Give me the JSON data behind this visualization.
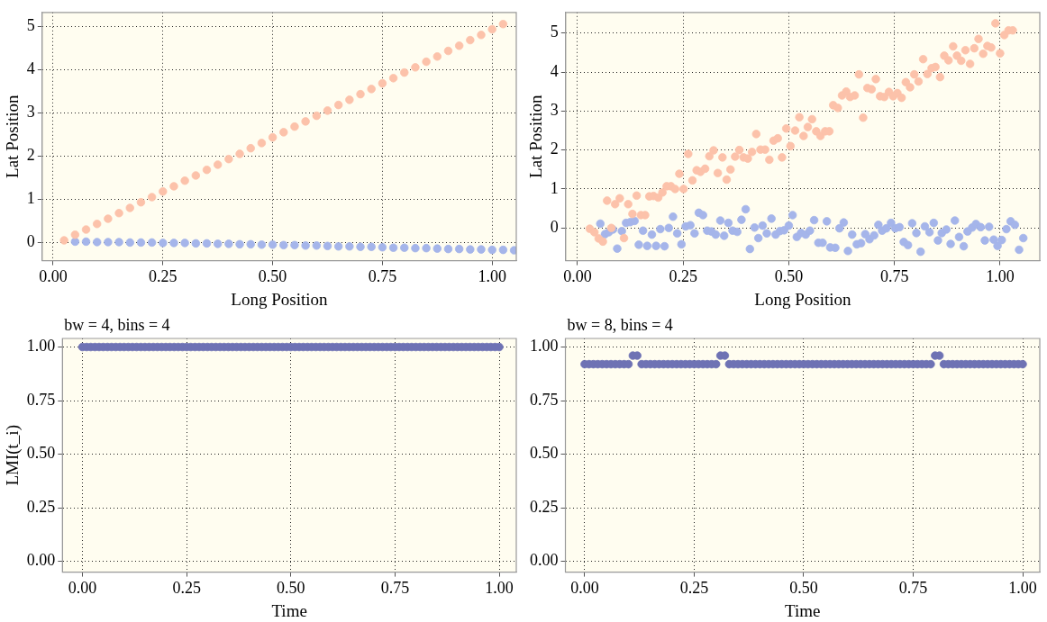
{
  "chart_data": [
    {
      "type": "scatter",
      "xlabel": "Long Position",
      "ylabel": "Lat Position",
      "xlim": [
        -0.025,
        1.055
      ],
      "ylim": [
        -0.42,
        5.32
      ],
      "xticks": [
        {
          "value": 0,
          "label": "0.00"
        },
        {
          "value": 0.25,
          "label": "0.25"
        },
        {
          "value": 0.5,
          "label": "0.50"
        },
        {
          "value": 0.75,
          "label": "0.75"
        },
        {
          "value": 1,
          "label": "1.00"
        }
      ],
      "yticks": [
        0,
        1,
        2,
        3,
        4,
        5
      ],
      "grid": true,
      "marker": "circle",
      "series": [
        {
          "color": "#fcc2aa",
          "x": [
            0.025,
            0.05,
            0.075,
            0.1,
            0.125,
            0.15,
            0.175,
            0.2,
            0.225,
            0.25,
            0.275,
            0.3,
            0.325,
            0.35,
            0.375,
            0.4,
            0.425,
            0.45,
            0.475,
            0.5,
            0.525,
            0.55,
            0.575,
            0.6,
            0.625,
            0.65,
            0.675,
            0.7,
            0.725,
            0.75,
            0.775,
            0.8,
            0.825,
            0.85,
            0.875,
            0.9,
            0.925,
            0.95,
            0.975,
            1.0,
            1.025
          ],
          "values": [
            0.05,
            0.18,
            0.3,
            0.43,
            0.55,
            0.68,
            0.8,
            0.93,
            1.05,
            1.18,
            1.3,
            1.43,
            1.55,
            1.68,
            1.8,
            1.93,
            2.05,
            2.18,
            2.3,
            2.43,
            2.55,
            2.68,
            2.8,
            2.93,
            3.05,
            3.18,
            3.3,
            3.43,
            3.55,
            3.68,
            3.8,
            3.93,
            4.05,
            4.18,
            4.3,
            4.43,
            4.55,
            4.68,
            4.8,
            4.93,
            5.05
          ]
        },
        {
          "color": "#a5b5ea",
          "x": [
            0.05,
            0.075,
            0.1,
            0.125,
            0.15,
            0.175,
            0.2,
            0.225,
            0.25,
            0.275,
            0.3,
            0.325,
            0.35,
            0.375,
            0.4,
            0.425,
            0.45,
            0.475,
            0.5,
            0.525,
            0.55,
            0.575,
            0.6,
            0.625,
            0.65,
            0.675,
            0.7,
            0.725,
            0.75,
            0.775,
            0.8,
            0.825,
            0.85,
            0.875,
            0.9,
            0.925,
            0.95,
            0.975,
            1.0,
            1.025,
            1.05
          ],
          "values": [
            0.02,
            0.02,
            0.01,
            0.01,
            0.01,
            0.0,
            0.0,
            0.0,
            -0.01,
            -0.01,
            -0.01,
            -0.02,
            -0.02,
            -0.03,
            -0.03,
            -0.04,
            -0.04,
            -0.05,
            -0.05,
            -0.06,
            -0.06,
            -0.07,
            -0.07,
            -0.08,
            -0.09,
            -0.09,
            -0.1,
            -0.1,
            -0.11,
            -0.12,
            -0.12,
            -0.13,
            -0.13,
            -0.14,
            -0.15,
            -0.15,
            -0.16,
            -0.16,
            -0.17,
            -0.17,
            -0.18
          ]
        }
      ]
    },
    {
      "type": "scatter",
      "xlabel": "Long Position",
      "ylabel": "Lat Position",
      "xlim": [
        -0.028,
        1.094
      ],
      "ylim": [
        -0.84,
        5.53
      ],
      "xticks": [
        {
          "value": 0,
          "label": "0.00"
        },
        {
          "value": 0.25,
          "label": "0.25"
        },
        {
          "value": 0.5,
          "label": "0.50"
        },
        {
          "value": 0.75,
          "label": "0.75"
        },
        {
          "value": 1,
          "label": "1.00"
        }
      ],
      "yticks": [
        0,
        1,
        2,
        3,
        4,
        5
      ],
      "grid": true,
      "marker": "circle",
      "series": [
        {
          "color": "#fcc2aa",
          "x": [
            0.029,
            0.04,
            0.05,
            0.06,
            0.07,
            0.08,
            0.089,
            0.1,
            0.11,
            0.12,
            0.13,
            0.14,
            0.15,
            0.16,
            0.17,
            0.18,
            0.191,
            0.201,
            0.211,
            0.221,
            0.231,
            0.241,
            0.251,
            0.262,
            0.272,
            0.282,
            0.291,
            0.302,
            0.312,
            0.322,
            0.332,
            0.343,
            0.353,
            0.362,
            0.373,
            0.383,
            0.393,
            0.403,
            0.413,
            0.423,
            0.433,
            0.444,
            0.454,
            0.464,
            0.474,
            0.484,
            0.494,
            0.504,
            0.515,
            0.525,
            0.535,
            0.545,
            0.555,
            0.565,
            0.575,
            0.586,
            0.596,
            0.605,
            0.616,
            0.626,
            0.636,
            0.645,
            0.656,
            0.666,
            0.676,
            0.686,
            0.696,
            0.706,
            0.716,
            0.726,
            0.737,
            0.747,
            0.757,
            0.767,
            0.777,
            0.787,
            0.797,
            0.807,
            0.818,
            0.828,
            0.838,
            0.847,
            0.858,
            0.868,
            0.878,
            0.889,
            0.898,
            0.908,
            0.918,
            0.929,
            0.939,
            0.949,
            0.96,
            0.97,
            0.979,
            0.989,
            1.0,
            1.01,
            1.02,
            1.03
          ],
          "values": [
            -0.02,
            -0.11,
            -0.27,
            -0.35,
            0.7,
            0.0,
            0.61,
            0.76,
            -0.26,
            0.61,
            0.36,
            0.83,
            0.33,
            0.33,
            0.81,
            0.82,
            0.78,
            0.91,
            1.07,
            1.07,
            1.0,
            1.39,
            1.0,
            1.9,
            1.22,
            1.48,
            1.44,
            1.52,
            1.84,
            1.99,
            1.41,
            1.81,
            1.24,
            1.5,
            1.83,
            2.0,
            1.81,
            1.78,
            1.95,
            2.41,
            2.01,
            2.01,
            1.75,
            2.24,
            2.3,
            1.81,
            2.55,
            2.1,
            2.5,
            2.84,
            2.36,
            2.59,
            2.79,
            2.48,
            2.36,
            2.48,
            2.48,
            3.15,
            3.08,
            3.4,
            3.5,
            3.36,
            3.4,
            3.94,
            2.83,
            3.59,
            3.56,
            3.82,
            3.38,
            3.36,
            3.49,
            3.38,
            3.46,
            3.34,
            3.74,
            3.61,
            3.94,
            3.76,
            4.33,
            3.95,
            4.1,
            4.13,
            3.87,
            4.42,
            4.3,
            4.66,
            4.42,
            4.29,
            4.56,
            4.21,
            4.61,
            4.85,
            4.47,
            4.67,
            4.63,
            5.25,
            4.48,
            4.95,
            5.07,
            5.07
          ]
        },
        {
          "color": "#a5b5ea",
          "x": [
            0.054,
            0.065,
            0.074,
            0.084,
            0.094,
            0.105,
            0.115,
            0.125,
            0.135,
            0.145,
            0.155,
            0.165,
            0.176,
            0.186,
            0.196,
            0.206,
            0.216,
            0.226,
            0.236,
            0.246,
            0.256,
            0.267,
            0.277,
            0.287,
            0.297,
            0.307,
            0.317,
            0.327,
            0.338,
            0.347,
            0.357,
            0.367,
            0.378,
            0.388,
            0.398,
            0.408,
            0.419,
            0.428,
            0.438,
            0.448,
            0.459,
            0.469,
            0.479,
            0.489,
            0.5,
            0.509,
            0.519,
            0.529,
            0.54,
            0.55,
            0.56,
            0.57,
            0.58,
            0.59,
            0.598,
            0.61,
            0.62,
            0.63,
            0.64,
            0.65,
            0.661,
            0.671,
            0.681,
            0.691,
            0.702,
            0.712,
            0.721,
            0.731,
            0.742,
            0.752,
            0.762,
            0.772,
            0.782,
            0.792,
            0.802,
            0.812,
            0.822,
            0.833,
            0.843,
            0.853,
            0.862,
            0.873,
            0.883,
            0.893,
            0.903,
            0.914,
            0.923,
            0.934,
            0.943,
            0.954,
            0.964,
            0.974,
            0.985,
            0.994,
            1.004,
            1.015,
            1.025,
            1.035,
            1.045,
            1.055
          ],
          "values": [
            0.11,
            -0.16,
            -0.11,
            -0.04,
            -0.53,
            -0.08,
            0.13,
            0.15,
            0.18,
            -0.43,
            -0.07,
            -0.46,
            -0.17,
            -0.46,
            -0.03,
            -0.47,
            0.0,
            0.29,
            -0.14,
            -0.42,
            0.04,
            0.07,
            -0.14,
            0.39,
            0.33,
            -0.07,
            -0.09,
            -0.17,
            0.19,
            -0.2,
            0.13,
            -0.07,
            -0.1,
            0.21,
            0.48,
            -0.54,
            0.01,
            -0.26,
            0.06,
            -0.14,
            0.24,
            -0.17,
            -0.08,
            -0.06,
            0.06,
            0.33,
            -0.23,
            -0.13,
            -0.17,
            -0.07,
            0.2,
            -0.38,
            -0.38,
            0.17,
            -0.5,
            -0.51,
            -0.01,
            0.14,
            -0.59,
            -0.17,
            -0.42,
            -0.39,
            -0.16,
            -0.29,
            -0.19,
            0.08,
            -0.07,
            -0.01,
            0.13,
            -0.01,
            0.02,
            -0.36,
            -0.44,
            0.12,
            -0.13,
            -0.61,
            0.04,
            -0.11,
            0.13,
            -0.32,
            -0.13,
            -0.04,
            -0.41,
            0.19,
            -0.23,
            -0.47,
            -0.09,
            0.01,
            0.1,
            0.02,
            -0.32,
            0.03,
            -0.3,
            -0.46,
            -0.31,
            -0.03,
            0.17,
            0.08,
            -0.56,
            -0.26
          ]
        }
      ]
    },
    {
      "type": "scatter",
      "title": "bw = 4, bins = 4",
      "xlabel": "Time",
      "ylabel": "LMI(t_i)",
      "xlim": [
        -0.048,
        1.041
      ],
      "ylim": [
        -0.05,
        1.04
      ],
      "xticks": [
        {
          "value": 0,
          "label": "0.00"
        },
        {
          "value": 0.25,
          "label": "0.25"
        },
        {
          "value": 0.5,
          "label": "0.50"
        },
        {
          "value": 0.75,
          "label": "0.75"
        },
        {
          "value": 1,
          "label": "1.00"
        }
      ],
      "yticks": [
        {
          "value": 0,
          "label": "0.00"
        },
        {
          "value": 0.25,
          "label": "0.25"
        },
        {
          "value": 0.5,
          "label": "0.50"
        },
        {
          "value": 0.75,
          "label": "0.75"
        },
        {
          "value": 1,
          "label": "1.00"
        }
      ],
      "grid": true,
      "marker": "circle",
      "series": [
        {
          "color": "#6e72b4",
          "x": [
            0,
            0.01,
            0.02,
            0.03,
            0.04,
            0.05,
            0.06,
            0.07,
            0.08,
            0.09,
            0.1,
            0.11,
            0.12,
            0.13,
            0.14,
            0.15,
            0.16,
            0.17,
            0.18,
            0.19,
            0.2,
            0.21,
            0.22,
            0.23,
            0.24,
            0.25,
            0.26,
            0.27,
            0.28,
            0.29,
            0.3,
            0.31,
            0.32,
            0.33,
            0.34,
            0.35,
            0.36,
            0.37,
            0.38,
            0.39,
            0.4,
            0.41,
            0.42,
            0.43,
            0.44,
            0.45,
            0.46,
            0.47,
            0.48,
            0.49,
            0.5,
            0.51,
            0.52,
            0.53,
            0.54,
            0.55,
            0.56,
            0.57,
            0.58,
            0.59,
            0.6,
            0.61,
            0.62,
            0.63,
            0.64,
            0.65,
            0.66,
            0.67,
            0.68,
            0.69,
            0.7,
            0.71,
            0.72,
            0.73,
            0.74,
            0.75,
            0.76,
            0.77,
            0.78,
            0.79,
            0.8,
            0.81,
            0.82,
            0.83,
            0.84,
            0.85,
            0.86,
            0.87,
            0.88,
            0.89,
            0.9,
            0.91,
            0.92,
            0.93,
            0.94,
            0.95,
            0.96,
            0.97,
            0.98,
            0.99,
            1
          ],
          "values": [
            1,
            1,
            1,
            1,
            1,
            1,
            1,
            1,
            1,
            1,
            1,
            1,
            1,
            1,
            1,
            1,
            1,
            1,
            1,
            1,
            1,
            1,
            1,
            1,
            1,
            1,
            1,
            1,
            1,
            1,
            1,
            1,
            1,
            1,
            1,
            1,
            1,
            1,
            1,
            1,
            1,
            1,
            1,
            1,
            1,
            1,
            1,
            1,
            1,
            1,
            1,
            1,
            1,
            1,
            1,
            1,
            1,
            1,
            1,
            1,
            1,
            1,
            1,
            1,
            1,
            1,
            1,
            1,
            1,
            1,
            1,
            1,
            1,
            1,
            1,
            1,
            1,
            1,
            1,
            1,
            1,
            1,
            1,
            1,
            1,
            1,
            1,
            1,
            1,
            1,
            1,
            1,
            1,
            1,
            1,
            1,
            1,
            1,
            1,
            1,
            1
          ]
        }
      ]
    },
    {
      "type": "scatter",
      "title": "bw = 8, bins = 4",
      "xlabel": "Time",
      "xlim": [
        -0.044,
        1.039
      ],
      "ylim": [
        -0.05,
        1.04
      ],
      "xticks": [
        {
          "value": 0,
          "label": "0.00"
        },
        {
          "value": 0.25,
          "label": "0.25"
        },
        {
          "value": 0.5,
          "label": "0.50"
        },
        {
          "value": 0.75,
          "label": "0.75"
        },
        {
          "value": 1,
          "label": "1.00"
        }
      ],
      "yticks": [
        {
          "value": 0,
          "label": "0.00"
        },
        {
          "value": 0.25,
          "label": "0.25"
        },
        {
          "value": 0.5,
          "label": "0.50"
        },
        {
          "value": 0.75,
          "label": "0.75"
        },
        {
          "value": 1,
          "label": "1.00"
        }
      ],
      "grid": true,
      "marker": "circle",
      "series": [
        {
          "color": "#6e72b4",
          "x": [
            0,
            0.01,
            0.02,
            0.03,
            0.04,
            0.05,
            0.06,
            0.07,
            0.08,
            0.09,
            0.1,
            0.11,
            0.12,
            0.13,
            0.14,
            0.15,
            0.16,
            0.17,
            0.18,
            0.19,
            0.2,
            0.21,
            0.22,
            0.23,
            0.24,
            0.25,
            0.26,
            0.27,
            0.28,
            0.29,
            0.3,
            0.31,
            0.32,
            0.33,
            0.34,
            0.35,
            0.36,
            0.37,
            0.38,
            0.39,
            0.4,
            0.41,
            0.42,
            0.43,
            0.44,
            0.45,
            0.46,
            0.47,
            0.48,
            0.49,
            0.5,
            0.51,
            0.52,
            0.53,
            0.54,
            0.55,
            0.56,
            0.57,
            0.58,
            0.59,
            0.6,
            0.61,
            0.62,
            0.63,
            0.64,
            0.65,
            0.66,
            0.67,
            0.68,
            0.69,
            0.7,
            0.71,
            0.72,
            0.73,
            0.74,
            0.75,
            0.76,
            0.77,
            0.78,
            0.79,
            0.8,
            0.81,
            0.82,
            0.83,
            0.84,
            0.85,
            0.86,
            0.87,
            0.88,
            0.89,
            0.9,
            0.91,
            0.92,
            0.93,
            0.94,
            0.95,
            0.96,
            0.97,
            0.98,
            0.99,
            1
          ],
          "values": [
            0.92,
            0.92,
            0.92,
            0.92,
            0.92,
            0.92,
            0.92,
            0.92,
            0.92,
            0.92,
            0.92,
            0.96,
            0.96,
            0.92,
            0.92,
            0.92,
            0.92,
            0.92,
            0.92,
            0.92,
            0.92,
            0.92,
            0.92,
            0.92,
            0.92,
            0.92,
            0.92,
            0.92,
            0.92,
            0.92,
            0.92,
            0.96,
            0.96,
            0.92,
            0.92,
            0.92,
            0.92,
            0.92,
            0.92,
            0.92,
            0.92,
            0.92,
            0.92,
            0.92,
            0.92,
            0.92,
            0.92,
            0.92,
            0.92,
            0.92,
            0.92,
            0.92,
            0.92,
            0.92,
            0.92,
            0.92,
            0.92,
            0.92,
            0.92,
            0.92,
            0.92,
            0.92,
            0.92,
            0.92,
            0.92,
            0.92,
            0.92,
            0.92,
            0.92,
            0.92,
            0.92,
            0.92,
            0.92,
            0.92,
            0.92,
            0.92,
            0.92,
            0.92,
            0.92,
            0.92,
            0.96,
            0.96,
            0.92,
            0.92,
            0.92,
            0.92,
            0.92,
            0.92,
            0.92,
            0.92,
            0.92,
            0.92,
            0.92,
            0.92,
            0.92,
            0.92,
            0.92,
            0.92,
            0.92,
            0.92,
            0.92
          ]
        }
      ]
    }
  ]
}
